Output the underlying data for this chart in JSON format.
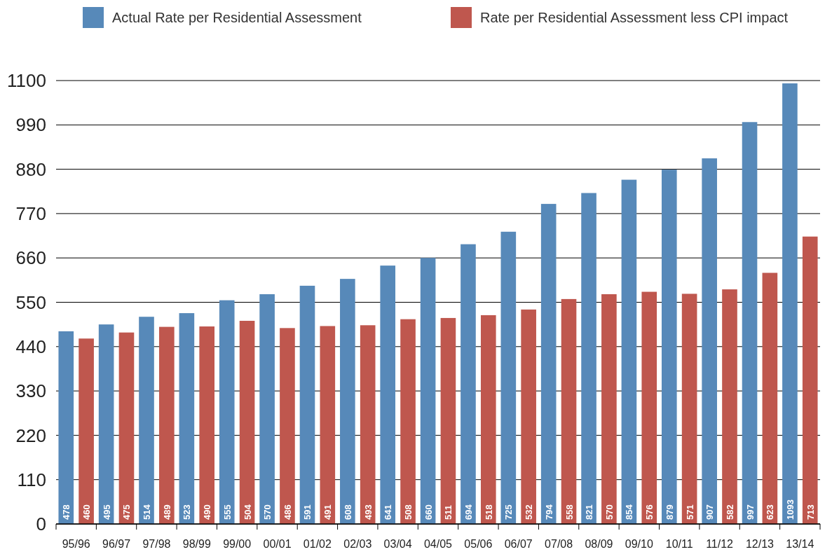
{
  "chart_data": {
    "type": "bar",
    "categories": [
      "95/96",
      "96/97",
      "97/98",
      "98/99",
      "99/00",
      "00/01",
      "01/02",
      "02/03",
      "03/04",
      "04/05",
      "05/06",
      "06/07",
      "07/08",
      "08/09",
      "09/10",
      "10/11",
      "11/12",
      "12/13",
      "13/14"
    ],
    "series": [
      {
        "name": "Actual Rate per Residential Assessment",
        "color": "#5789b9",
        "values": [
          478,
          495,
          514,
          523,
          555,
          570,
          591,
          608,
          641,
          660,
          694,
          725,
          794,
          821,
          854,
          879,
          907,
          997,
          1093
        ]
      },
      {
        "name": "Rate per Residential Assessment less CPI impact",
        "color": "#bf574e",
        "values": [
          460,
          475,
          489,
          490,
          504,
          486,
          491,
          493,
          508,
          511,
          518,
          532,
          558,
          570,
          576,
          571,
          582,
          623,
          713
        ]
      }
    ],
    "ylim": [
      0,
      1100
    ],
    "yticks": [
      0,
      110,
      220,
      330,
      440,
      550,
      660,
      770,
      880,
      990,
      1100
    ],
    "grid": "y",
    "legend": "top",
    "data_labels": true
  }
}
